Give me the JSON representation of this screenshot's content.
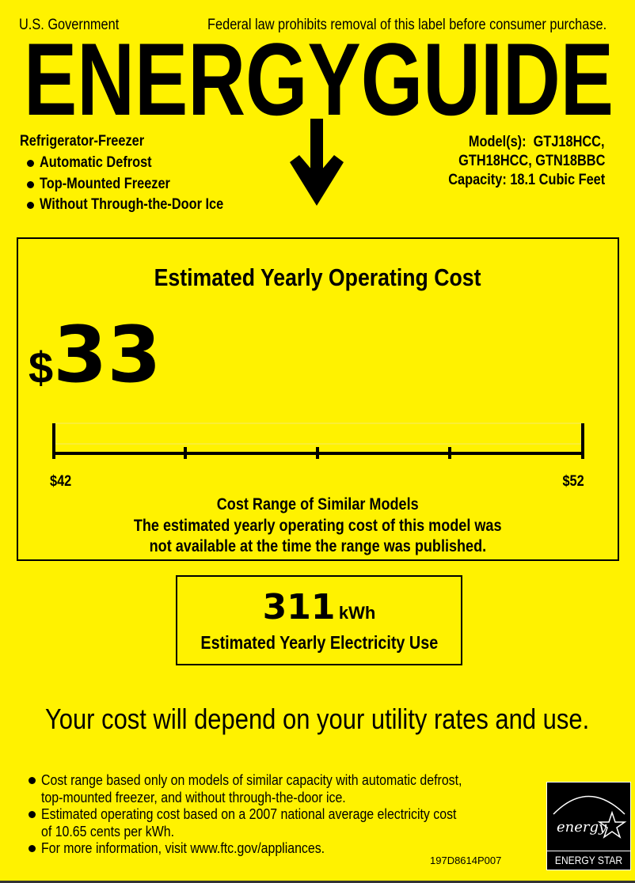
{
  "header": {
    "left_text": "U.S. Government",
    "right_text": "Federal law prohibits removal of this label before consumer purchase.",
    "logo_text": "ENERGYGUIDE"
  },
  "product": {
    "type": "Refrigerator-Freezer",
    "features": [
      "Automatic Defrost",
      "Top-Mounted Freezer",
      "Without Through-the-Door Ice"
    ],
    "models_line1": "Model(s):  GTJ18HCC,",
    "models_line2": "GTH18HCC, GTN18BBC",
    "capacity": "Capacity: 18.1 Cubic Feet"
  },
  "cost": {
    "heading": "Estimated Yearly Operating Cost",
    "currency": "$",
    "value": "33",
    "range_min": "$42",
    "range_max": "$52",
    "range_title": "Cost Range of Similar Models",
    "range_note_line1": "The estimated yearly operating cost of this model was",
    "range_note_line2": "not available at the time the range was published."
  },
  "electricity": {
    "value": "311",
    "unit": "kWh",
    "label": "Estimated Yearly Electricity Use"
  },
  "disclaimer": "Your cost will depend on your utility rates and use.",
  "footnotes": [
    {
      "line1": "Cost range based only on models of similar capacity with automatic defrost,",
      "line2": "top-mounted freezer, and without through-the-door ice."
    },
    {
      "line1": "Estimated operating cost based on a 2007 national average electricity cost",
      "line2": "of 10.65 cents per kWh."
    },
    {
      "line1": "For more information, visit www.ftc.gov/appliances.",
      "line2": ""
    }
  ],
  "label_code": "197D8614P007",
  "energy_star": {
    "script_text": "energy",
    "label": "ENERGY STAR"
  },
  "colors": {
    "background": "#fff200",
    "ink": "#000000"
  }
}
